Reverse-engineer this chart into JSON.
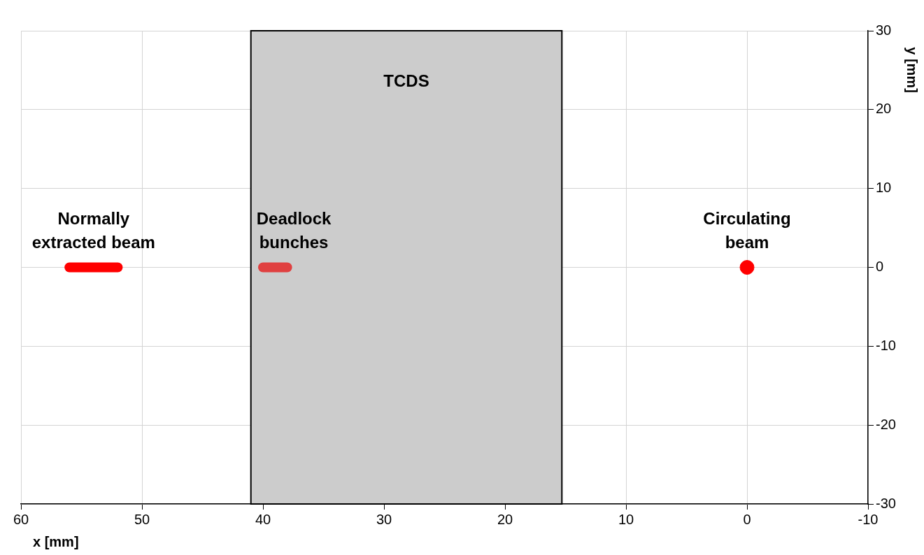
{
  "chart_data": {
    "type": "line",
    "xlabel": "x [mm]",
    "ylabel": "y [mm]",
    "xlim": [
      60,
      -10
    ],
    "xticks": [
      60,
      50,
      40,
      30,
      20,
      10,
      0,
      -10
    ],
    "ylim": [
      -30,
      30
    ],
    "yticks": [
      -30,
      -20,
      -10,
      0,
      10,
      20,
      30
    ],
    "grid": true,
    "legend": false,
    "series": [
      {
        "color": "#ff0000",
        "x": [
          56,
          52
        ],
        "values": [
          0,
          0
        ]
      },
      {
        "color": "#e04040",
        "x": [
          40,
          38
        ],
        "values": [
          0,
          0
        ]
      },
      {
        "type": "scatter",
        "color": "#ff0000",
        "marker": "circle",
        "x": [
          0
        ],
        "values": [
          0
        ]
      }
    ],
    "bands": [
      {
        "axis": "x",
        "from": 41,
        "to": 15.3,
        "label": "TCDS",
        "color": "#cccccc"
      }
    ],
    "annotations": [
      {
        "text": "Normally extracted beam",
        "x": 54,
        "y": 0
      },
      {
        "text": "Deadlock bunches",
        "x": 39,
        "y": 0
      },
      {
        "text": "Circulating beam",
        "x": 0,
        "y": 0
      }
    ]
  }
}
